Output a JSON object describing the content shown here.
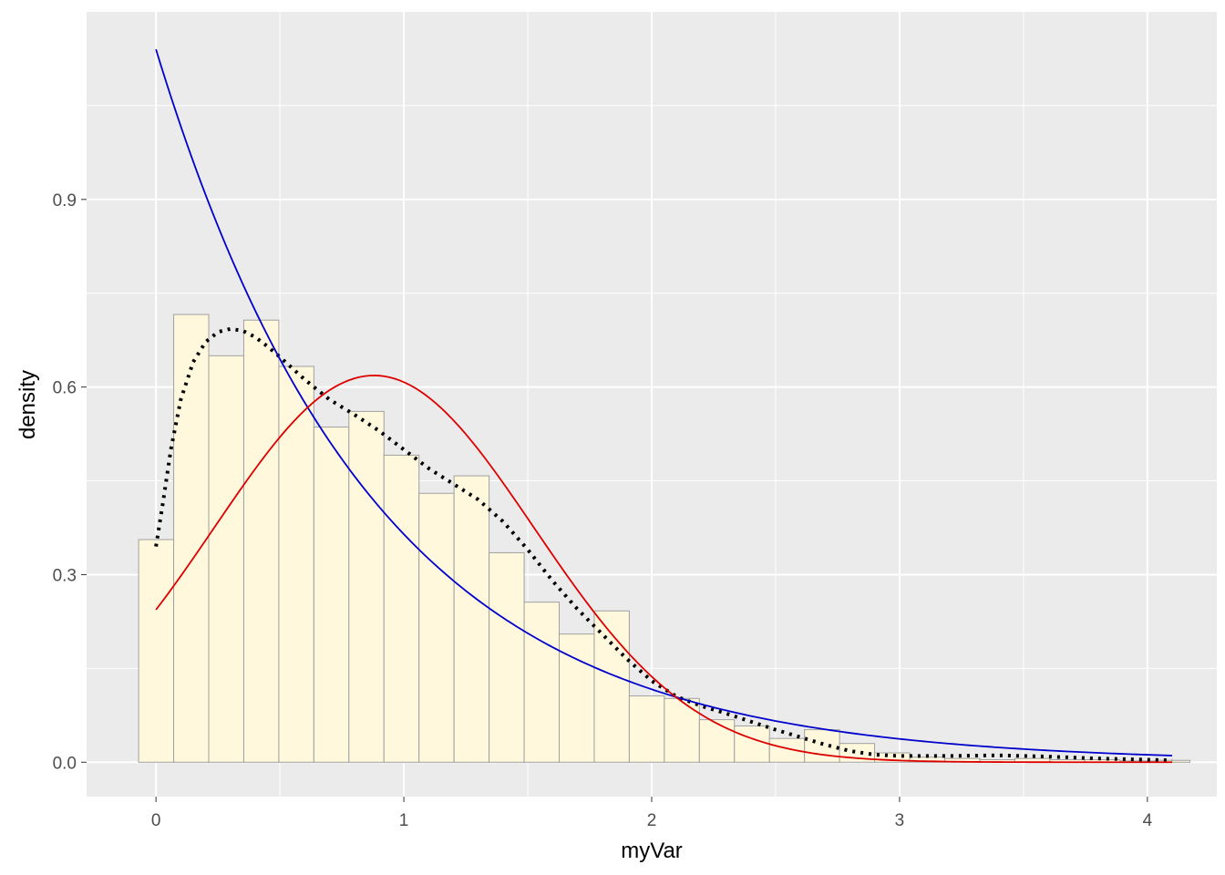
{
  "chart_data": {
    "type": "bar",
    "xlabel": "myVar",
    "ylabel": "density",
    "xlim": [
      -0.28,
      4.28
    ],
    "ylim": [
      -0.055,
      1.2
    ],
    "x_ticks": [
      0,
      1,
      2,
      3,
      4
    ],
    "x_tick_labels": [
      "0",
      "1",
      "2",
      "3",
      "4"
    ],
    "y_ticks": [
      0.0,
      0.3,
      0.6,
      0.9
    ],
    "y_tick_labels": [
      "0.0",
      "0.3",
      "0.6",
      "0.9"
    ],
    "grid": true,
    "colors": {
      "panel_background": "#ebebeb",
      "grid": "#ffffff",
      "bar_fill": "#fff8dc",
      "bar_outline": "#a0a0a0",
      "empirical_density": "#000000",
      "exponential_fit": "#0000cc",
      "normal_fit": "#dd0000",
      "tick_text": "#4d4d4d",
      "title_text": "#000000"
    },
    "histogram": {
      "bin_start": -0.07,
      "bin_width": 0.1414,
      "values": [
        0.356,
        0.716,
        0.65,
        0.707,
        0.633,
        0.536,
        0.561,
        0.491,
        0.43,
        0.458,
        0.335,
        0.256,
        0.205,
        0.242,
        0.106,
        0.102,
        0.068,
        0.058,
        0.038,
        0.052,
        0.03,
        0.015,
        0.008,
        0.006,
        0.004,
        0.006,
        0.004,
        0.004,
        0.002,
        0.003
      ]
    },
    "series": [
      {
        "style": "dotted",
        "x": [
          0.0,
          0.03,
          0.06,
          0.1,
          0.15,
          0.2,
          0.25,
          0.3,
          0.35,
          0.4,
          0.45,
          0.5,
          0.6,
          0.7,
          0.8,
          0.9,
          1.0,
          1.1,
          1.2,
          1.3,
          1.4,
          1.5,
          1.6,
          1.7,
          1.8,
          1.9,
          2.0,
          2.1,
          2.2,
          2.3,
          2.4,
          2.5,
          2.6,
          2.7,
          2.8,
          2.9,
          3.0,
          3.2,
          3.4,
          3.6,
          3.8,
          4.0,
          4.1
        ],
        "y": [
          0.345,
          0.42,
          0.5,
          0.58,
          0.64,
          0.672,
          0.688,
          0.693,
          0.69,
          0.68,
          0.665,
          0.648,
          0.612,
          0.58,
          0.556,
          0.53,
          0.5,
          0.47,
          0.445,
          0.42,
          0.385,
          0.34,
          0.29,
          0.245,
          0.205,
          0.165,
          0.13,
          0.105,
          0.09,
          0.078,
          0.065,
          0.052,
          0.04,
          0.028,
          0.018,
          0.012,
          0.01,
          0.01,
          0.011,
          0.009,
          0.006,
          0.004,
          0.003
        ]
      },
      {
        "style": "solid-blue",
        "curve": "exponential",
        "x_range": [
          0,
          4.1
        ],
        "rate": 1.14
      },
      {
        "style": "solid-red",
        "curve": "normal",
        "x_range": [
          0,
          4.1
        ],
        "mean": 0.88,
        "sd": 0.645
      }
    ]
  }
}
